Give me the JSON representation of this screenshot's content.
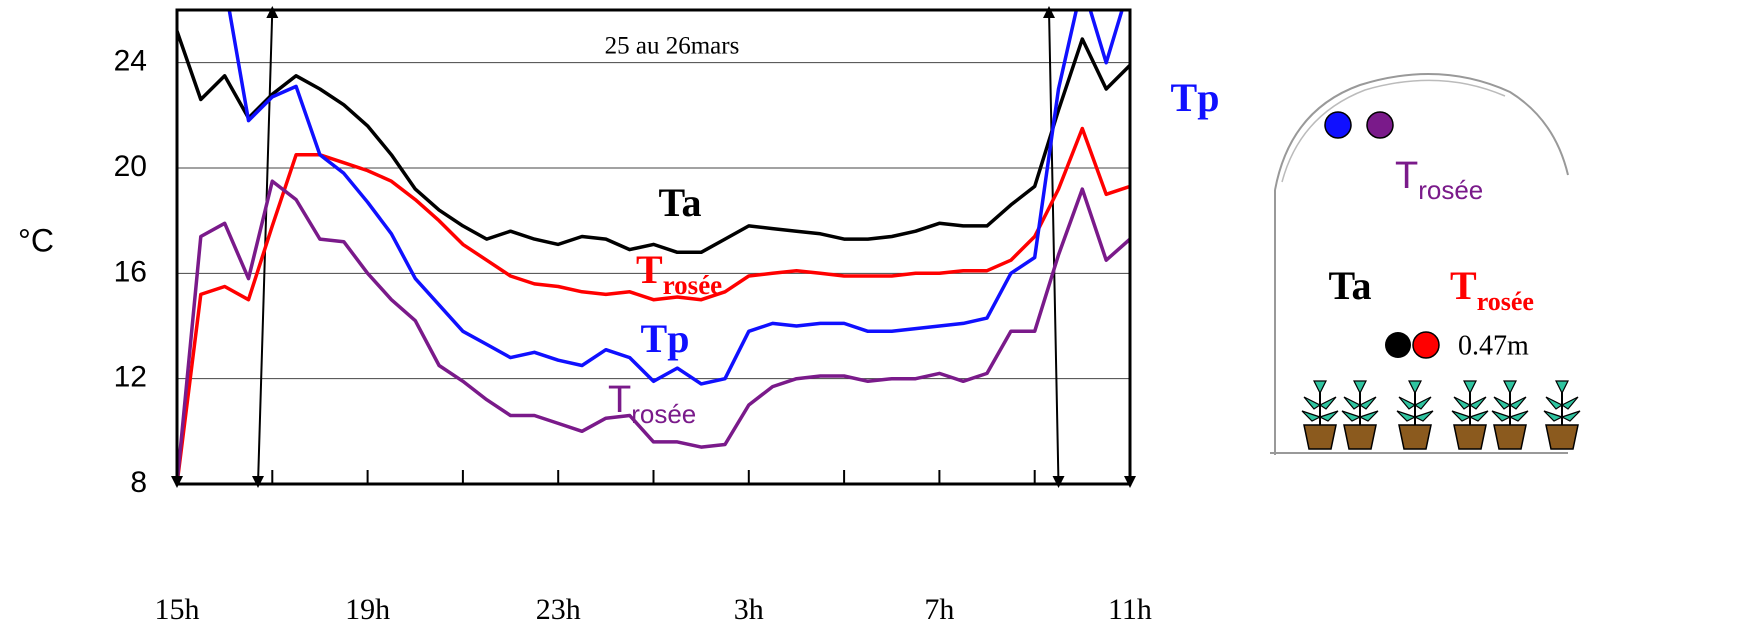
{
  "chart_data": {
    "type": "line",
    "title": "25 au 26mars",
    "y_label": "°C",
    "xlim": [
      15,
      35
    ],
    "ylim": [
      8,
      26
    ],
    "yticks": [
      8,
      12,
      16,
      20,
      24
    ],
    "xticks": [
      {
        "value": 15,
        "label": "15h"
      },
      {
        "value": 19,
        "label": "19h"
      },
      {
        "value": 23,
        "label": "23h"
      },
      {
        "value": 27,
        "label": "3h"
      },
      {
        "value": 31,
        "label": "7h"
      },
      {
        "value": 35,
        "label": "11h"
      }
    ],
    "xminor_ticks": [
      17,
      21,
      25,
      29,
      33
    ],
    "grid": true,
    "x": [
      15,
      15.5,
      16,
      16.5,
      17,
      17.5,
      18,
      18.5,
      19,
      19.5,
      20,
      20.5,
      21,
      21.5,
      22,
      22.5,
      23,
      23.5,
      24,
      24.5,
      25,
      25.5,
      26,
      26.5,
      27,
      27.5,
      28,
      28.5,
      29,
      29.5,
      30,
      30.5,
      31,
      31.5,
      32,
      32.5,
      33,
      33.5,
      34,
      34.5,
      35
    ],
    "series": [
      {
        "name": "Ta",
        "color": "#000000",
        "values": [
          25.2,
          22.6,
          23.5,
          21.9,
          22.8,
          23.5,
          23.0,
          22.4,
          21.6,
          20.5,
          19.2,
          18.4,
          17.8,
          17.3,
          17.6,
          17.3,
          17.1,
          17.4,
          17.3,
          16.9,
          17.1,
          16.8,
          16.8,
          17.3,
          17.8,
          17.7,
          17.6,
          17.5,
          17.3,
          17.3,
          17.4,
          17.6,
          17.9,
          17.8,
          17.8,
          18.6,
          19.3,
          22.2,
          24.9,
          23.0,
          23.9
        ]
      },
      {
        "name": "T",
        "name_sub": "rosée",
        "color": "#ff0000",
        "values": [
          8.0,
          15.2,
          15.5,
          15.0,
          17.8,
          20.5,
          20.5,
          20.2,
          19.9,
          19.5,
          18.8,
          18.0,
          17.1,
          16.5,
          15.9,
          15.6,
          15.5,
          15.3,
          15.2,
          15.3,
          15.0,
          15.1,
          15.0,
          15.3,
          15.9,
          16.0,
          16.1,
          16.0,
          15.9,
          15.9,
          15.9,
          16.0,
          16.0,
          16.1,
          16.1,
          16.5,
          17.4,
          19.2,
          21.5,
          19.0,
          19.3
        ]
      },
      {
        "name": "Tp",
        "color": "#1010ff",
        "values": [
          null,
          null,
          27,
          21.8,
          22.7,
          23.1,
          20.5,
          19.8,
          18.7,
          17.5,
          15.8,
          14.8,
          13.8,
          13.3,
          12.8,
          13.0,
          12.7,
          12.5,
          13.1,
          12.8,
          11.9,
          12.4,
          11.8,
          12.0,
          13.8,
          14.1,
          14.0,
          14.1,
          14.1,
          13.8,
          13.8,
          13.9,
          14.0,
          14.1,
          14.3,
          16.0,
          16.6,
          23.0,
          27,
          24.0,
          27
        ]
      },
      {
        "name": "T",
        "name_sub": "rosée",
        "color": "#7a1a8a",
        "values": [
          8.0,
          17.4,
          17.9,
          15.8,
          19.5,
          18.8,
          17.3,
          17.2,
          16.0,
          15.0,
          14.2,
          12.5,
          11.9,
          11.2,
          10.6,
          10.6,
          10.3,
          10.0,
          10.5,
          10.6,
          9.6,
          9.6,
          9.4,
          9.5,
          11.0,
          11.7,
          12.0,
          12.1,
          12.1,
          11.9,
          12.0,
          12.0,
          12.2,
          11.9,
          12.2,
          13.8,
          13.8,
          16.7,
          19.2,
          16.5,
          17.3
        ]
      }
    ],
    "indicator": {
      "color": "#000000",
      "x": [
        15,
        16.7,
        17.0,
        33.3,
        33.5,
        35
      ],
      "values": [
        8,
        8,
        26,
        26,
        8,
        8
      ]
    }
  },
  "diagram": {
    "tp": "Tp",
    "trosee_top": {
      "main": "T",
      "sub": "rosée"
    },
    "ta": "Ta",
    "trosee": {
      "main": "T",
      "sub": "rosée"
    },
    "height": "0.47m"
  }
}
